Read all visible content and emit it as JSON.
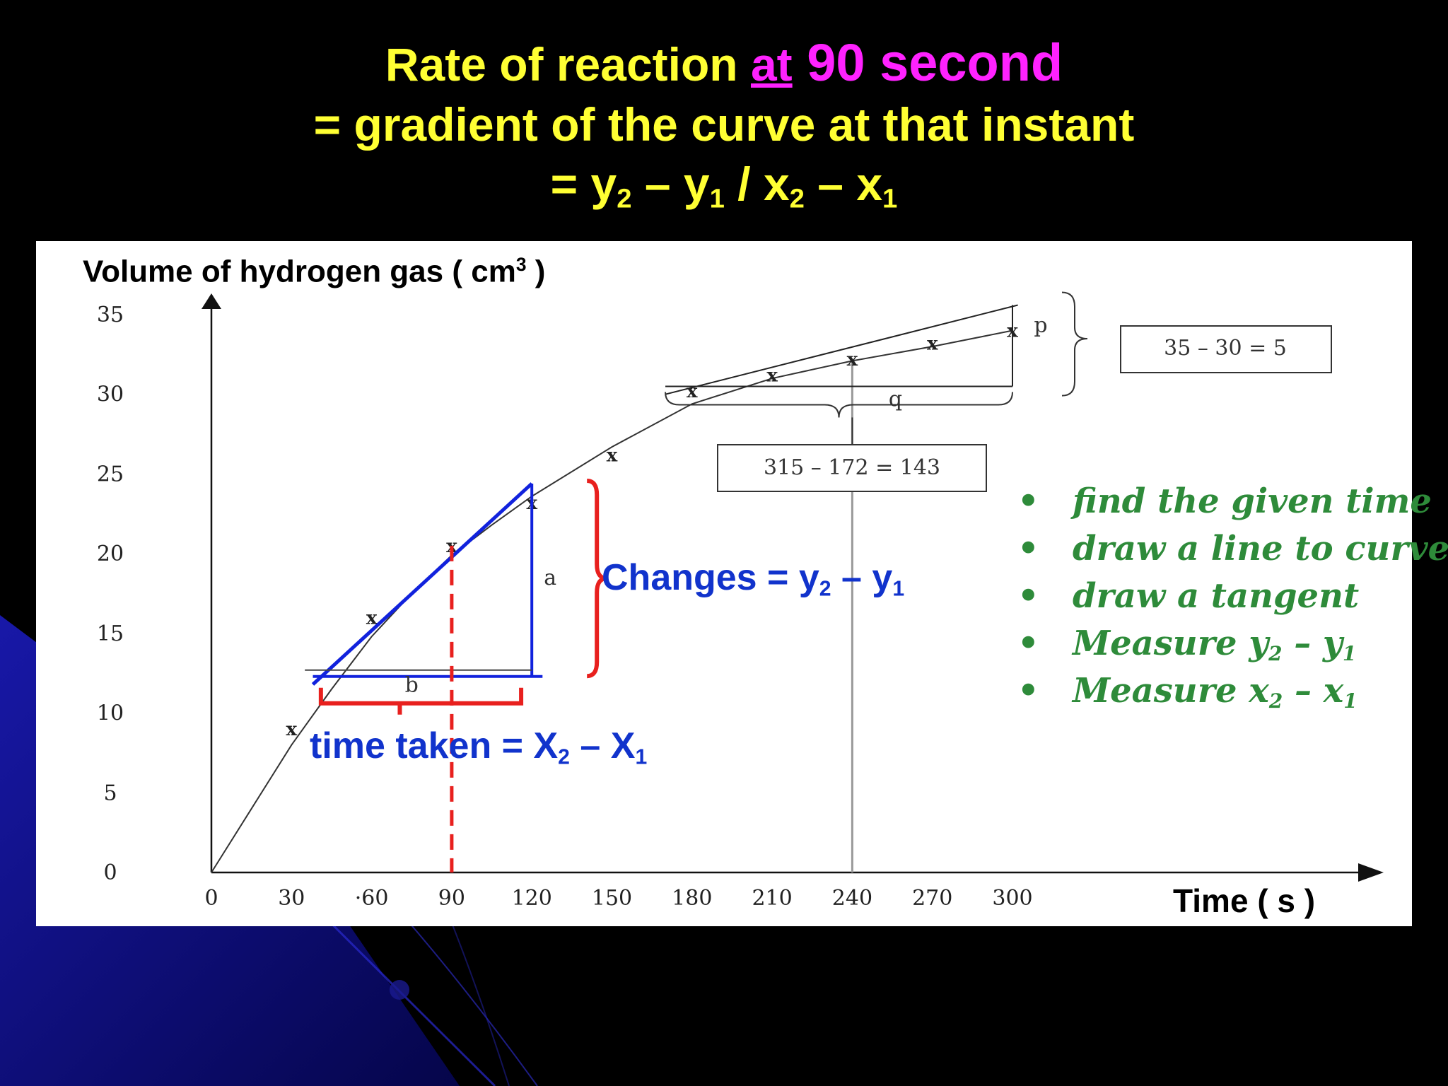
{
  "title": {
    "line1_main": "Rate of reaction ",
    "line1_at": "at",
    "line1_time": " 90 second",
    "line2": "=  gradient of the curve at that instant",
    "line3_parts": [
      "= y",
      "2",
      " – y",
      "1",
      "  /  x",
      "2",
      " – x",
      "1"
    ]
  },
  "colors": {
    "title_yellow": "#ffff33",
    "title_magenta": "#ff22ff",
    "annotation_blue": "#1133cc",
    "bracket_red": "#e8201e",
    "steps_green": "#2e8b3a"
  },
  "chart_data": {
    "type": "line",
    "xlabel": "Time ( s )",
    "ylabel_parts": [
      "Volume of hydrogen gas ( cm",
      "3",
      " )"
    ],
    "x_ticks": [
      0,
      30,
      60,
      90,
      120,
      150,
      180,
      210,
      240,
      270,
      300
    ],
    "x_tick_labels": [
      "0",
      "30",
      "·60",
      "90",
      "120",
      "150",
      "180",
      "210",
      "240",
      "270",
      "300"
    ],
    "y_ticks": [
      0,
      5,
      10,
      15,
      20,
      25,
      30,
      35
    ],
    "y_tick_labels": [
      "0",
      "5",
      "10",
      "15",
      "20",
      "25",
      "30",
      "35"
    ],
    "xlim": [
      0,
      330
    ],
    "ylim": [
      0,
      36
    ],
    "curve": {
      "x": [
        0,
        15,
        30,
        45,
        60,
        75,
        90,
        105,
        120,
        150,
        180,
        210,
        240,
        270,
        300
      ],
      "y": [
        0,
        4,
        8,
        11.5,
        14.8,
        17.5,
        19.9,
        21.8,
        23.6,
        26.7,
        29.4,
        31.0,
        32.1,
        33.0,
        34.0
      ]
    },
    "data_points": {
      "x": [
        30,
        60,
        90,
        120,
        150,
        180,
        210,
        240,
        270,
        300
      ],
      "y": [
        9,
        16,
        20.5,
        23.2,
        26.2,
        30.2,
        31.2,
        32.2,
        33.2,
        34.0
      ]
    },
    "tangent_90": {
      "x": [
        38,
        120
      ],
      "y": [
        11.8,
        24.4
      ]
    },
    "triangle_90": {
      "x1": 45,
      "x2": 120,
      "y1": 12.3,
      "y2": 24.4,
      "base_label": "b",
      "height_label": "a"
    },
    "tangent_240": {
      "x": [
        170,
        302
      ],
      "y": [
        30.0,
        35.6
      ]
    },
    "triangle_240": {
      "x1": 170,
      "x2": 300,
      "y1": 30.5,
      "y2": 35.6,
      "base_label": "q",
      "height_label": "p"
    },
    "vertical_guide_x": 90,
    "vertical_guide_240": 240,
    "box_rate_numer": "35 – 30 = 5",
    "box_rate_denom": "315 – 172 = 143",
    "point_marker": "x"
  },
  "annotations": {
    "changes_parts": [
      "Changes = y",
      "2",
      " – y",
      "1"
    ],
    "time_parts": [
      "time taken = X",
      "2",
      " – X",
      "1"
    ]
  },
  "steps": [
    {
      "bullet": "•",
      "parts": [
        "find the given time"
      ]
    },
    {
      "bullet": "•",
      "parts": [
        "draw a line to curve"
      ]
    },
    {
      "bullet": "•",
      "parts": [
        "draw a tangent"
      ]
    },
    {
      "bullet": "•",
      "parts": [
        "Measure y",
        "2",
        " – y",
        "1"
      ]
    },
    {
      "bullet": "•",
      "parts": [
        "Measure x",
        "2",
        " – x",
        "1"
      ]
    }
  ]
}
